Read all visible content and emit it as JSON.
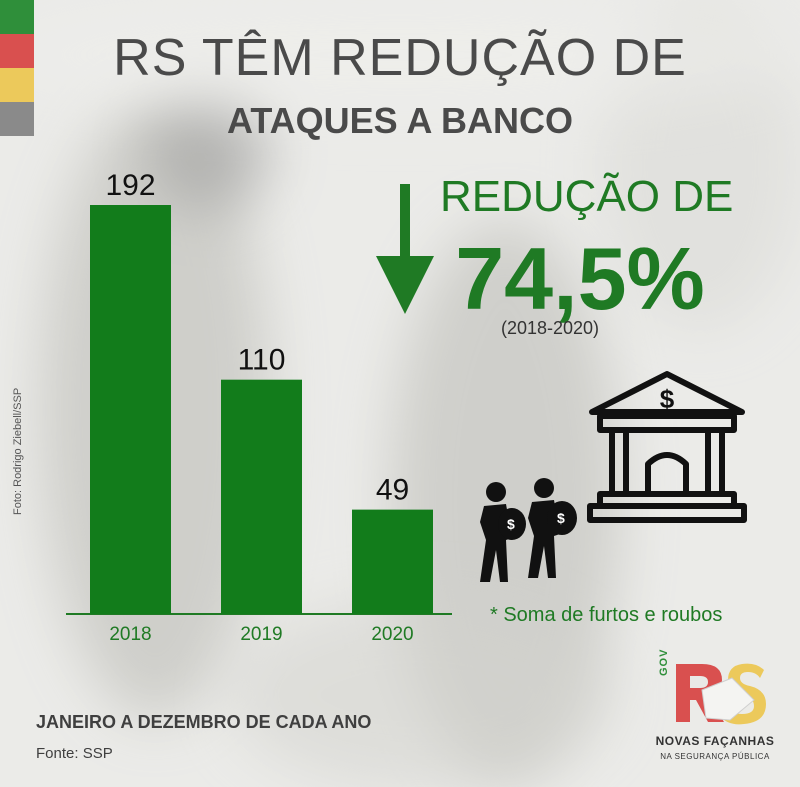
{
  "header": {
    "title_line1": "RS TÊM REDUÇÃO DE",
    "title_line2": "ATAQUES A BANCO"
  },
  "photo_credit": "Foto: Rodrigo Ziebell/SSP",
  "highlight": {
    "label": "REDUÇÃO DE",
    "value": "74,5%",
    "period": "(2018-2020)"
  },
  "footnote": "* Soma de furtos e roubos",
  "period_note": "JANEIRO A DEZEMBRO DE CADA ANO",
  "source": "Fonte: SSP",
  "logo": {
    "gov": "GOV",
    "mark": "RS",
    "tagline": "NOVAS FAÇANHAS",
    "subtagline": "NA SEGURANÇA PÚBLICA"
  },
  "colors": {
    "bar": "#127c1b",
    "accent_green": "#1f7a24",
    "title_gray": "#4a4a4a",
    "stripe_green": "#2f8f3a",
    "stripe_red": "#d9504f",
    "stripe_yellow": "#ecc95b",
    "stripe_gray": "#8a8a8a"
  },
  "icons": [
    "down-arrow-icon",
    "bank-icon",
    "robbers-icon",
    "dollar-icon"
  ],
  "chart_data": {
    "type": "bar",
    "categories": [
      "2018",
      "2019",
      "2020"
    ],
    "values": [
      192,
      110,
      49
    ],
    "title": "RS TÊM REDUÇÃO DE ATAQUES A BANCO",
    "xlabel": "",
    "ylabel": "",
    "ylim": [
      0,
      192
    ],
    "grid": false,
    "data_labels": true
  }
}
